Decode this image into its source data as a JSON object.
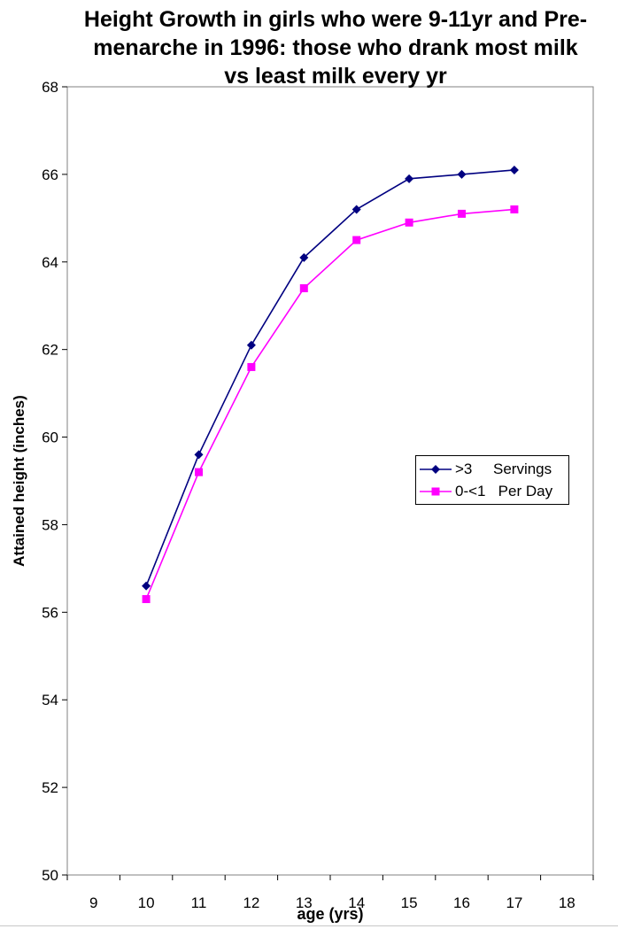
{
  "chart_data": {
    "type": "line",
    "title_lines": [
      "Height Growth in girls who were 9-11yr and Pre-",
      "menarche in 1996:  those who drank most milk",
      "vs least milk every yr"
    ],
    "xlabel": "age (yrs)",
    "ylabel": "Attained height (inches)",
    "xlim": [
      8.5,
      18.5
    ],
    "ylim": [
      50,
      68
    ],
    "x_ticks": [
      9,
      10,
      11,
      12,
      13,
      14,
      15,
      16,
      17,
      18
    ],
    "y_ticks": [
      50,
      52,
      54,
      56,
      58,
      60,
      62,
      64,
      66,
      68
    ],
    "grid": false,
    "legend_position": "right",
    "series": [
      {
        "name": ">3     Servings",
        "color": "#000080",
        "marker": "diamond",
        "x": [
          10,
          11,
          12,
          13,
          14,
          15,
          16,
          17
        ],
        "values": [
          56.6,
          59.6,
          62.1,
          64.1,
          65.2,
          65.9,
          66.0,
          66.1
        ]
      },
      {
        "name": "0-<1   Per Day",
        "color": "#ff00ff",
        "marker": "square",
        "x": [
          10,
          11,
          12,
          13,
          14,
          15,
          16,
          17
        ],
        "values": [
          56.3,
          59.2,
          61.6,
          63.4,
          64.5,
          64.9,
          65.1,
          65.2
        ]
      }
    ]
  }
}
